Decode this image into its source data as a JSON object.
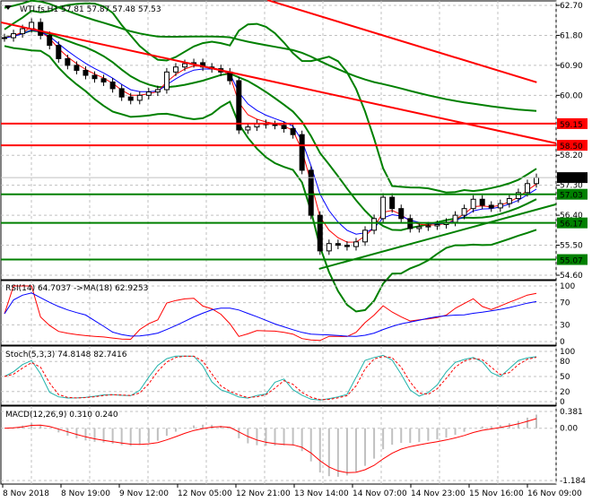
{
  "colors": {
    "bull": "#000000",
    "bear": "#000000",
    "band": "#008000",
    "resistance": "#ff0000",
    "support": "#008000",
    "ma_fast": "#ff0000",
    "ma_slow": "#0000ff",
    "current": "#000000"
  },
  "chart_data": [
    {
      "type": "candlestick",
      "title": "WTI.fs,H1  57.81 57.87 57.48 57.53",
      "symbol_icon": "triangle-down-icon",
      "ylim": [
        54.6,
        62.7
      ],
      "y_ticks": [
        "62.70",
        "61.80",
        "60.90",
        "60.00",
        "58.20",
        "57.30",
        "56.40",
        "55.50",
        "54.60"
      ],
      "x_ticks": [
        "8 Nov 2018",
        "8 Nov 19:00",
        "9 Nov 12:00",
        "12 Nov 05:00",
        "12 Nov 21:00",
        "13 Nov 14:00",
        "14 Nov 07:00",
        "14 Nov 23:00",
        "15 Nov 16:00",
        "16 Nov 09:00"
      ],
      "closes": [
        61.73,
        61.85,
        62.0,
        62.19,
        61.8,
        61.5,
        61.1,
        60.9,
        60.75,
        60.6,
        60.5,
        60.4,
        60.2,
        59.95,
        59.85,
        60.0,
        60.1,
        60.17,
        60.7,
        60.85,
        60.95,
        60.98,
        60.85,
        60.8,
        60.7,
        60.44,
        58.96,
        59.05,
        59.15,
        59.12,
        59.1,
        59.0,
        58.82,
        57.75,
        56.4,
        55.33,
        55.55,
        55.5,
        55.46,
        55.6,
        55.95,
        56.3,
        56.94,
        56.6,
        56.3,
        56.0,
        56.05,
        56.08,
        56.12,
        56.19,
        56.4,
        56.6,
        56.88,
        56.7,
        56.62,
        56.75,
        56.9,
        57.08,
        57.35,
        57.53
      ],
      "current_price": "57.53",
      "levels": [
        {
          "price": 59.15,
          "label": "59.15",
          "kind": "resistance"
        },
        {
          "price": 58.5,
          "label": "58.50",
          "kind": "resistance"
        },
        {
          "price": 57.03,
          "label": "57.03",
          "kind": "support"
        },
        {
          "price": 56.17,
          "label": "56.17",
          "kind": "support"
        },
        {
          "price": 55.07,
          "label": "55.07",
          "kind": "support"
        }
      ],
      "trendlines": [
        {
          "kind": "resistance",
          "from": [
            0,
            62.19
          ],
          "to": [
            1,
            58.56
          ]
        },
        {
          "kind": "resistance",
          "from": [
            0.48,
            62.86
          ],
          "to": [
            0.965,
            60.39
          ]
        },
        {
          "kind": "support",
          "from": [
            0.573,
            54.79
          ],
          "to": [
            1,
            56.73
          ]
        }
      ],
      "indicators": "Bollinger Bands(20,2), moving averages"
    },
    {
      "type": "line",
      "title": "RSI(14) 64.7037  ->MA(18) 62.9253",
      "ylim": [
        0,
        100
      ],
      "y_ticks": [
        "100",
        "70",
        "30",
        "0"
      ]
    },
    {
      "type": "line",
      "title": "Stoch(5,3,3) 74.8148 82.7416",
      "ylim": [
        0,
        100
      ],
      "y_ticks": [
        "100",
        "80",
        "50",
        "20",
        "0"
      ]
    },
    {
      "type": "bar",
      "title": "MACD(12,26,9) 0.310 0.240",
      "ylim": [
        -1.184,
        0.381
      ],
      "y_ticks": [
        "0.381",
        "0.00",
        "-1.184"
      ]
    }
  ]
}
